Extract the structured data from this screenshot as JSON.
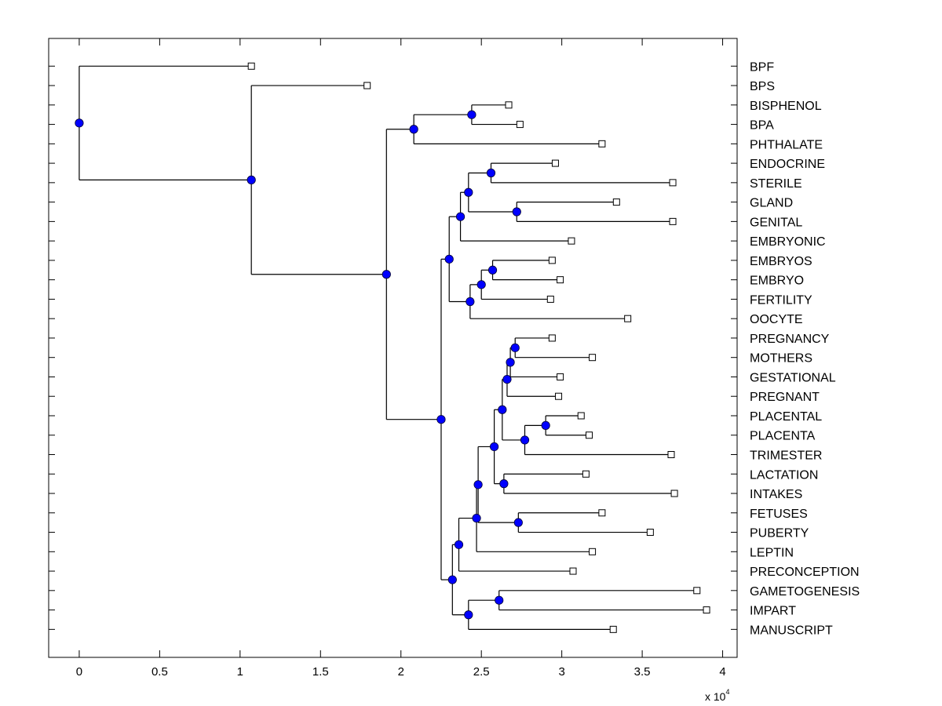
{
  "chart_data": {
    "type": "dendrogram",
    "title": "",
    "xlabel": "",
    "ylabel": "",
    "x_multiplier_label": "x 10",
    "x_multiplier_exponent": "4",
    "xlim": [
      -1900,
      40900
    ],
    "xticks": [
      0,
      5000,
      10000,
      15000,
      20000,
      25000,
      30000,
      35000,
      40000
    ],
    "xtick_labels": [
      "0",
      "0.5",
      "1",
      "1.5",
      "2",
      "2.5",
      "3",
      "3.5",
      "4"
    ],
    "grid": false,
    "colors": {
      "node_fill": "#0000ff",
      "node_edge": "#000033",
      "leaf_fill": "#ffffff",
      "line": "#000000"
    },
    "leaves": [
      {
        "id": "BPF",
        "label": "BPF",
        "x": 10700
      },
      {
        "id": "BPS",
        "label": "BPS",
        "x": 17900
      },
      {
        "id": "BISPHENOL",
        "label": "BISPHENOL",
        "x": 26700
      },
      {
        "id": "BPA",
        "label": "BPA",
        "x": 27400
      },
      {
        "id": "PHTHALATE",
        "label": "PHTHALATE",
        "x": 32500
      },
      {
        "id": "ENDOCRINE",
        "label": "ENDOCRINE",
        "x": 29600
      },
      {
        "id": "STERILE",
        "label": "STERILE",
        "x": 36900
      },
      {
        "id": "GLAND",
        "label": "GLAND",
        "x": 33400
      },
      {
        "id": "GENITAL",
        "label": "GENITAL",
        "x": 36900
      },
      {
        "id": "EMBRYONIC",
        "label": "EMBRYONIC",
        "x": 30600
      },
      {
        "id": "EMBRYOS",
        "label": "EMBRYOS",
        "x": 29400
      },
      {
        "id": "EMBRYO",
        "label": "EMBRYO",
        "x": 29900
      },
      {
        "id": "FERTILITY",
        "label": "FERTILITY",
        "x": 29300
      },
      {
        "id": "OOCYTE",
        "label": "OOCYTE",
        "x": 34100
      },
      {
        "id": "PREGNANCY",
        "label": "PREGNANCY",
        "x": 29400
      },
      {
        "id": "MOTHERS",
        "label": "MOTHERS",
        "x": 31900
      },
      {
        "id": "GESTATIONAL",
        "label": "GESTATIONAL",
        "x": 29900
      },
      {
        "id": "PREGNANT",
        "label": "PREGNANT",
        "x": 29800
      },
      {
        "id": "PLACENTAL",
        "label": "PLACENTAL",
        "x": 31200
      },
      {
        "id": "PLACENTA",
        "label": "PLACENTA",
        "x": 31700
      },
      {
        "id": "TRIMESTER",
        "label": "TRIMESTER",
        "x": 36800
      },
      {
        "id": "LACTATION",
        "label": "LACTATION",
        "x": 31500
      },
      {
        "id": "INTAKES",
        "label": "INTAKES",
        "x": 37000
      },
      {
        "id": "FETUSES",
        "label": "FETUSES",
        "x": 32500
      },
      {
        "id": "PUBERTY",
        "label": "PUBERTY",
        "x": 35500
      },
      {
        "id": "LEPTIN",
        "label": "LEPTIN",
        "x": 31900
      },
      {
        "id": "PRECONCEPTION",
        "label": "PRECONCEPTION",
        "x": 30700
      },
      {
        "id": "GAMETOGENESIS",
        "label": "GAMETOGENESIS",
        "x": 38400
      },
      {
        "id": "IMPART",
        "label": "IMPART",
        "x": 39000
      },
      {
        "id": "MANUSCRIPT",
        "label": "MANUSCRIPT",
        "x": 33200
      }
    ],
    "nodes": [
      {
        "id": "n_root",
        "x": 0,
        "children": [
          "BPF",
          "n1"
        ]
      },
      {
        "id": "n1",
        "x": 10700,
        "children": [
          "BPS",
          "n2"
        ]
      },
      {
        "id": "n2",
        "x": 19100,
        "children": [
          "n3",
          "n4"
        ]
      },
      {
        "id": "n3",
        "x": 20800,
        "children": [
          "n5",
          "PHTHALATE"
        ]
      },
      {
        "id": "n5",
        "x": 24400,
        "children": [
          "BISPHENOL",
          "BPA"
        ]
      },
      {
        "id": "n4",
        "x": 22500,
        "children": [
          "n6",
          "nD"
        ]
      },
      {
        "id": "n6",
        "x": 23000,
        "children": [
          "n7",
          "n8"
        ]
      },
      {
        "id": "n7",
        "x": 23700,
        "children": [
          "n9",
          "EMBRYONIC"
        ]
      },
      {
        "id": "n9",
        "x": 24200,
        "children": [
          "n10",
          "n11"
        ]
      },
      {
        "id": "n10",
        "x": 25600,
        "children": [
          "ENDOCRINE",
          "STERILE"
        ]
      },
      {
        "id": "n11",
        "x": 27200,
        "children": [
          "GLAND",
          "GENITAL"
        ]
      },
      {
        "id": "n8",
        "x": 24300,
        "children": [
          "n12",
          "OOCYTE"
        ]
      },
      {
        "id": "n12",
        "x": 25000,
        "children": [
          "n13",
          "FERTILITY"
        ]
      },
      {
        "id": "n13",
        "x": 25700,
        "children": [
          "EMBRYOS",
          "EMBRYO"
        ]
      },
      {
        "id": "nD",
        "x": 23200,
        "children": [
          "nC",
          "nE"
        ]
      },
      {
        "id": "nC",
        "x": 23600,
        "children": [
          "nB",
          "PRECONCEPTION"
        ]
      },
      {
        "id": "nB",
        "x": 24700,
        "children": [
          "nA",
          "LEPTIN"
        ]
      },
      {
        "id": "nA",
        "x": 24800,
        "children": [
          "nF",
          "nG"
        ]
      },
      {
        "id": "nF",
        "x": 25800,
        "children": [
          "nH",
          "nI"
        ]
      },
      {
        "id": "nH",
        "x": 26300,
        "children": [
          "nJ",
          "nK"
        ]
      },
      {
        "id": "nJ",
        "x": 26600,
        "children": [
          "nL",
          "PREGNANT"
        ]
      },
      {
        "id": "nL",
        "x": 26800,
        "children": [
          "nM",
          "GESTATIONAL"
        ]
      },
      {
        "id": "nM",
        "x": 27100,
        "children": [
          "PREGNANCY",
          "MOTHERS"
        ]
      },
      {
        "id": "nK",
        "x": 27700,
        "children": [
          "nN",
          "TRIMESTER"
        ]
      },
      {
        "id": "nN",
        "x": 29000,
        "children": [
          "PLACENTAL",
          "PLACENTA"
        ]
      },
      {
        "id": "nI",
        "x": 26400,
        "children": [
          "LACTATION",
          "INTAKES"
        ]
      },
      {
        "id": "nG",
        "x": 27300,
        "children": [
          "FETUSES",
          "PUBERTY"
        ]
      },
      {
        "id": "nE",
        "x": 24200,
        "children": [
          "nO",
          "MANUSCRIPT"
        ]
      },
      {
        "id": "nO",
        "x": 26100,
        "children": [
          "GAMETOGENESIS",
          "IMPART"
        ]
      }
    ]
  }
}
